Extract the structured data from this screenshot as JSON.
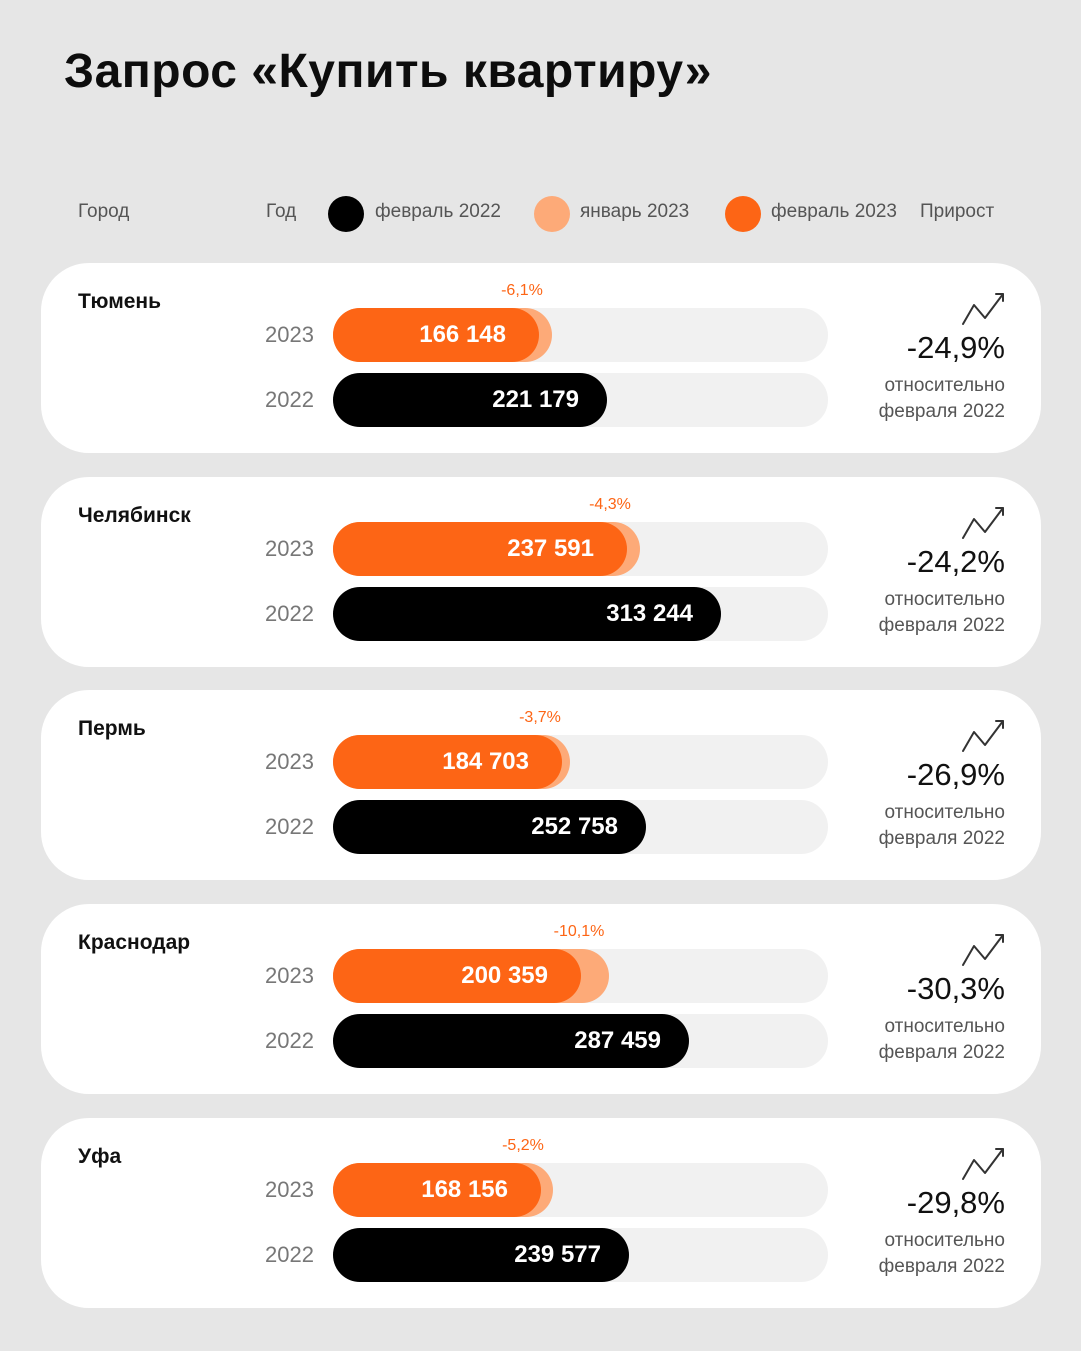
{
  "title": "Запрос «Купить квартиру»",
  "header": {
    "city_label": "Город",
    "year_label": "Год",
    "growth_label": "Прирост"
  },
  "legend": [
    {
      "label": "февраль 2022",
      "color": "#000000"
    },
    {
      "label": "январь 2023",
      "color": "#fdaa78"
    },
    {
      "label": "февраль 2023",
      "color": "#fd6515"
    }
  ],
  "colors": {
    "feb_2022": "#000000",
    "jan_2023": "#fdaa78",
    "feb_2023": "#fd6515",
    "track": "#f1f1f1",
    "background": "#e6e6e6"
  },
  "icons": [
    "trend-up-icon"
  ],
  "chart_data": {
    "type": "bar",
    "orientation": "horizontal",
    "axis_max": 400000,
    "year_labels": [
      "2023",
      "2022"
    ],
    "relative_label_line1": "относительно",
    "relative_label_line2": "февраля 2022",
    "series": [
      {
        "name": "февраль 2022",
        "key": "feb2022"
      },
      {
        "name": "январь 2023",
        "key": "jan2023"
      },
      {
        "name": "февраль 2023",
        "key": "feb2023"
      }
    ],
    "cities": [
      {
        "city": "Тюмень",
        "feb2022": 221179,
        "feb2022_label": "221 179",
        "jan2023": 176836,
        "feb2023": 166148,
        "feb2023_label": "166 148",
        "mom_change": "-6,1%",
        "yoy_change": "-24,9%"
      },
      {
        "city": "Челябинск",
        "feb2022": 313244,
        "feb2022_label": "313 244",
        "jan2023": 248263,
        "feb2023": 237591,
        "feb2023_label": "237 591",
        "mom_change": "-4,3%",
        "yoy_change": "-24,2%"
      },
      {
        "city": "Пермь",
        "feb2022": 252758,
        "feb2022_label": "252 758",
        "jan2023": 191800,
        "feb2023": 184703,
        "feb2023_label": "184 703",
        "mom_change": "-3,7%",
        "yoy_change": "-26,9%"
      },
      {
        "city": "Краснодар",
        "feb2022": 287459,
        "feb2022_label": "287 459",
        "jan2023": 222869,
        "feb2023": 200359,
        "feb2023_label": "200 359",
        "mom_change": "-10,1%",
        "yoy_change": "-30,3%"
      },
      {
        "city": "Уфа",
        "feb2022": 239577,
        "feb2022_label": "239 577",
        "jan2023": 177380,
        "feb2023": 168156,
        "feb2023_label": "168 156",
        "mom_change": "-5,2%",
        "yoy_change": "-29,8%"
      }
    ]
  }
}
